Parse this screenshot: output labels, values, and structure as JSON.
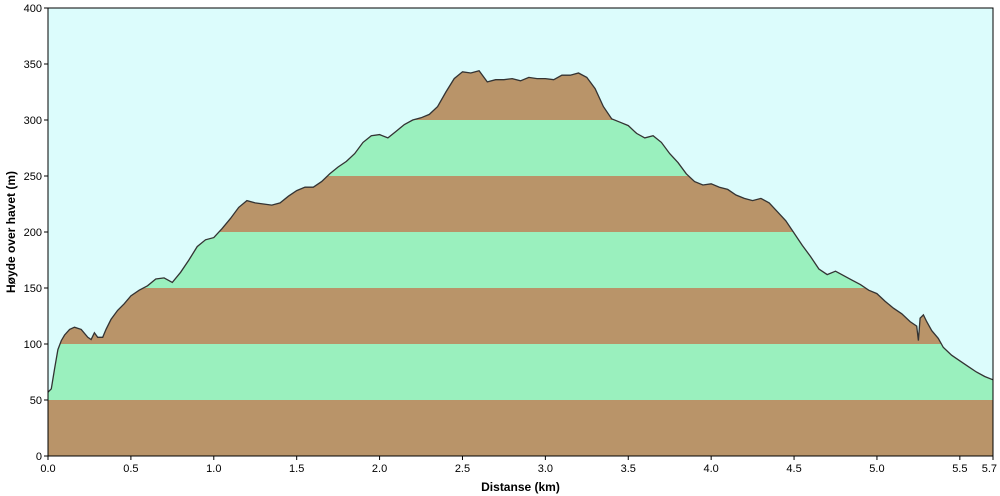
{
  "chart_data": {
    "type": "area",
    "title": "",
    "xlabel": "Distanse  (km)",
    "ylabel": "Høyde over havet (m)",
    "xlim": [
      0,
      5.7
    ],
    "ylim": [
      0,
      400
    ],
    "x_ticks": [
      0.0,
      0.5,
      1.0,
      1.5,
      2.0,
      2.5,
      3.0,
      3.5,
      4.0,
      4.5,
      5.0,
      5.5,
      5.7
    ],
    "x_tick_labels": [
      "0.0",
      "0.5",
      "1.0",
      "1.5",
      "2.0",
      "2.5",
      "3.0",
      "3.5",
      "4.0",
      "4.5",
      "5.0",
      "5.5",
      "5.7"
    ],
    "y_ticks": [
      0,
      50,
      100,
      150,
      200,
      250,
      300,
      350,
      400
    ],
    "y_tick_labels": [
      "0",
      "50",
      "100",
      "150",
      "200",
      "250",
      "300",
      "350",
      "400"
    ],
    "band_step": 50,
    "colors": {
      "background": "#dcfcfc",
      "band_brown": "#b99469",
      "band_green": "#9af0be",
      "outline": "#333333"
    },
    "series": [
      {
        "x": [
          0.0,
          0.02,
          0.04,
          0.06,
          0.08,
          0.1,
          0.13,
          0.16,
          0.2,
          0.24,
          0.26,
          0.28,
          0.3,
          0.33,
          0.35,
          0.38,
          0.42,
          0.46,
          0.5,
          0.55,
          0.6,
          0.65,
          0.7,
          0.75,
          0.8,
          0.85,
          0.9,
          0.95,
          1.0,
          1.05,
          1.1,
          1.15,
          1.2,
          1.25,
          1.3,
          1.35,
          1.4,
          1.45,
          1.5,
          1.55,
          1.6,
          1.65,
          1.7,
          1.75,
          1.8,
          1.85,
          1.9,
          1.95,
          2.0,
          2.05,
          2.1,
          2.15,
          2.2,
          2.25,
          2.3,
          2.35,
          2.4,
          2.45,
          2.5,
          2.55,
          2.6,
          2.65,
          2.7,
          2.75,
          2.8,
          2.85,
          2.9,
          2.95,
          3.0,
          3.05,
          3.1,
          3.15,
          3.2,
          3.25,
          3.3,
          3.35,
          3.4,
          3.45,
          3.5,
          3.55,
          3.6,
          3.65,
          3.7,
          3.75,
          3.8,
          3.85,
          3.9,
          3.95,
          4.0,
          4.05,
          4.1,
          4.15,
          4.2,
          4.25,
          4.3,
          4.35,
          4.4,
          4.45,
          4.5,
          4.55,
          4.6,
          4.65,
          4.7,
          4.75,
          4.8,
          4.85,
          4.9,
          4.95,
          5.0,
          5.05,
          5.1,
          5.15,
          5.2,
          5.24,
          5.25,
          5.26,
          5.28,
          5.3,
          5.33,
          5.37,
          5.4,
          5.45,
          5.5,
          5.55,
          5.6,
          5.65,
          5.7
        ],
        "y": [
          57,
          60,
          78,
          95,
          103,
          108,
          113,
          115,
          113,
          106,
          104,
          110,
          106,
          106,
          113,
          122,
          130,
          136,
          143,
          148,
          152,
          158,
          159,
          155,
          164,
          175,
          187,
          193,
          195,
          203,
          212,
          222,
          228,
          226,
          225,
          224,
          226,
          232,
          237,
          240,
          240,
          245,
          252,
          258,
          263,
          270,
          280,
          286,
          287,
          284,
          290,
          296,
          300,
          302,
          305,
          312,
          325,
          337,
          343,
          342,
          344,
          334,
          336,
          336,
          337,
          335,
          338,
          337,
          337,
          336,
          340,
          340,
          342,
          338,
          328,
          312,
          301,
          298,
          295,
          288,
          284,
          286,
          280,
          270,
          262,
          252,
          245,
          242,
          243,
          240,
          238,
          233,
          230,
          228,
          230,
          226,
          218,
          210,
          199,
          188,
          178,
          167,
          162,
          165,
          161,
          157,
          153,
          148,
          145,
          138,
          132,
          127,
          120,
          116,
          103,
          123,
          126,
          120,
          112,
          105,
          97,
          90,
          85,
          80,
          75,
          71,
          68
        ]
      }
    ]
  }
}
